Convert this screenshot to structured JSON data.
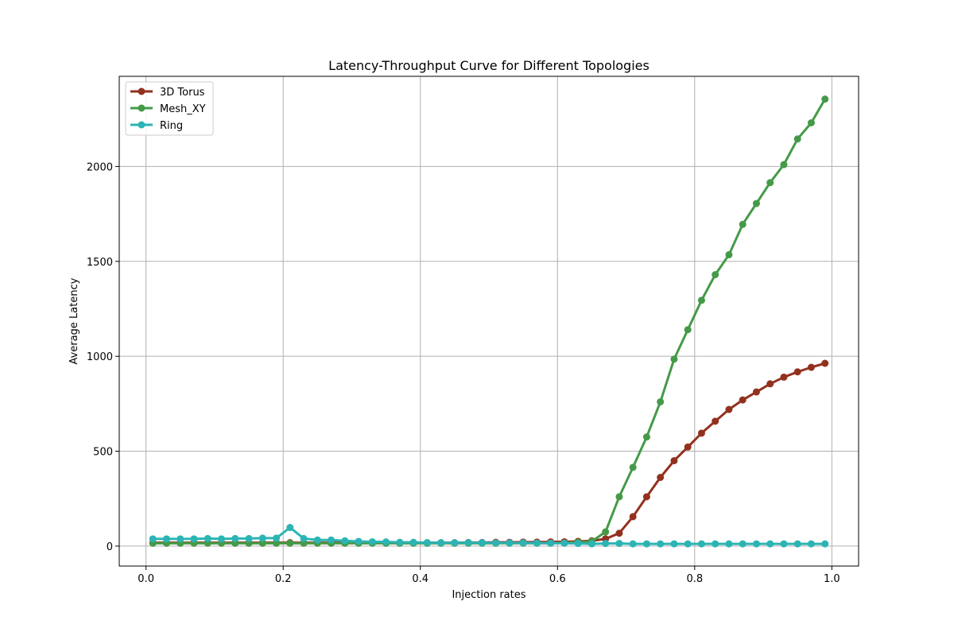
{
  "chart_data": {
    "type": "line",
    "title": "Latency-Throughput Curve for Different Topologies",
    "xlabel": "Injection rates",
    "ylabel": "Average Latency",
    "xlim": [
      -0.039,
      1.039
    ],
    "ylim": [
      -105,
      2475
    ],
    "xticks": [
      0.0,
      0.2,
      0.4,
      0.6,
      0.8,
      1.0
    ],
    "xtick_labels": [
      "0.0",
      "0.2",
      "0.4",
      "0.6",
      "0.8",
      "1.0"
    ],
    "yticks": [
      0,
      500,
      1000,
      1500,
      2000
    ],
    "ytick_labels": [
      "0",
      "500",
      "1000",
      "1500",
      "2000"
    ],
    "grid": true,
    "legend_position": "upper-left",
    "x": [
      0.01,
      0.03,
      0.05,
      0.07,
      0.09,
      0.11,
      0.13,
      0.15,
      0.17,
      0.19,
      0.21,
      0.23,
      0.25,
      0.27,
      0.29,
      0.31,
      0.33,
      0.35,
      0.37,
      0.39,
      0.41,
      0.43,
      0.45,
      0.47,
      0.49,
      0.51,
      0.53,
      0.55,
      0.57,
      0.59,
      0.61,
      0.63,
      0.65,
      0.67,
      0.69,
      0.71,
      0.73,
      0.75,
      0.77,
      0.79,
      0.81,
      0.83,
      0.85,
      0.87,
      0.89,
      0.91,
      0.93,
      0.95,
      0.97,
      0.99
    ],
    "series": [
      {
        "name": "3D Torus",
        "color": "#93311f",
        "values": [
          18,
          18,
          18,
          18,
          18,
          18,
          18,
          18,
          18,
          18,
          18,
          18,
          18,
          18,
          18,
          18,
          18,
          18,
          18,
          18,
          18,
          18,
          18,
          19,
          19,
          20,
          20,
          21,
          21,
          22,
          23,
          25,
          28,
          38,
          68,
          155,
          260,
          362,
          450,
          522,
          595,
          658,
          720,
          770,
          812,
          855,
          890,
          918,
          942,
          963
        ]
      },
      {
        "name": "Mesh_XY",
        "color": "#459a48",
        "values": [
          15,
          15,
          15,
          15,
          15,
          15,
          15,
          15,
          15,
          15,
          15,
          15,
          15,
          15,
          15,
          15,
          15,
          15,
          15,
          15,
          15,
          15,
          15,
          15,
          15,
          15,
          15,
          15,
          15,
          15,
          17,
          20,
          25,
          75,
          260,
          415,
          575,
          760,
          985,
          1140,
          1295,
          1430,
          1535,
          1695,
          1805,
          1915,
          2010,
          2145,
          2230,
          2355
        ]
      },
      {
        "name": "Ring",
        "color": "#2cb4b4",
        "values": [
          38,
          38,
          38,
          38,
          40,
          38,
          40,
          40,
          42,
          42,
          98,
          40,
          32,
          32,
          28,
          25,
          23,
          22,
          20,
          20,
          18,
          18,
          18,
          18,
          18,
          17,
          17,
          17,
          16,
          16,
          15,
          14,
          12,
          14,
          14,
          12,
          12,
          12,
          12,
          12,
          12,
          12,
          12,
          12,
          12,
          12,
          12,
          12,
          12,
          12
        ]
      }
    ]
  }
}
